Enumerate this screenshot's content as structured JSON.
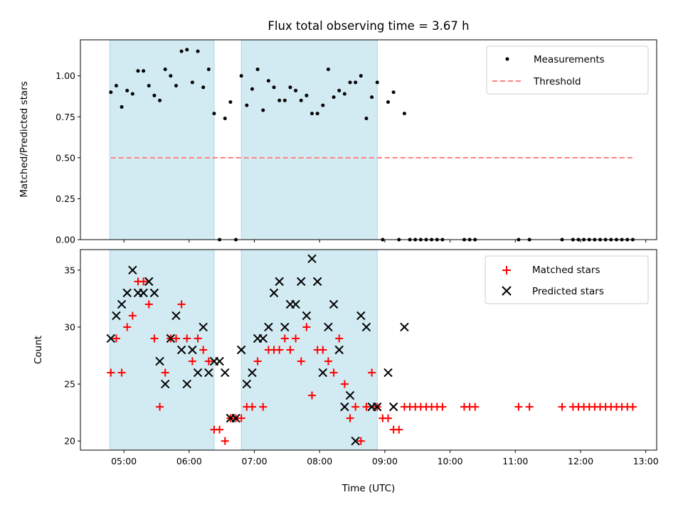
{
  "chart_data": [
    {
      "type": "scatter",
      "title": "Flux total observing time = 3.67 h",
      "xlabel": "",
      "ylabel": "Matched/Predicted stars",
      "x_range": [
        "04:20",
        "13:10"
      ],
      "ylim": [
        0.0,
        1.22
      ],
      "yticks": [
        "0.00",
        "0.25",
        "0.50",
        "0.75",
        "1.00"
      ],
      "yticks_values": [
        0.0,
        0.25,
        0.5,
        0.75,
        1.0
      ],
      "grid": false,
      "legend_position": "top-right",
      "shaded_intervals": [
        [
          "04:47",
          "06:23"
        ],
        [
          "06:48",
          "08:53"
        ]
      ],
      "shade_color": "#add8e6",
      "series": [
        {
          "name": "Measurements",
          "marker": "dot",
          "color": "#000000",
          "x": [
            "04:48",
            "04:53",
            "04:58",
            "05:03",
            "05:08",
            "05:13",
            "05:18",
            "05:23",
            "05:28",
            "05:33",
            "05:38",
            "05:43",
            "05:48",
            "05:53",
            "05:58",
            "06:03",
            "06:08",
            "06:13",
            "06:18",
            "06:23",
            "06:28",
            "06:33",
            "06:38",
            "06:43",
            "06:48",
            "06:53",
            "06:58",
            "07:03",
            "07:08",
            "07:13",
            "07:18",
            "07:23",
            "07:28",
            "07:33",
            "07:38",
            "07:43",
            "07:48",
            "07:53",
            "07:58",
            "08:03",
            "08:08",
            "08:13",
            "08:18",
            "08:23",
            "08:28",
            "08:33",
            "08:38",
            "08:43",
            "08:48",
            "08:53",
            "08:58",
            "09:03",
            "09:08",
            "09:13",
            "09:18",
            "09:23",
            "09:28",
            "09:33",
            "09:38",
            "09:43",
            "09:48",
            "09:53",
            "10:13",
            "10:18",
            "10:23",
            "11:03",
            "11:13",
            "11:43",
            "11:53",
            "11:58",
            "12:03",
            "12:08",
            "12:13",
            "12:18",
            "12:23",
            "12:28",
            "12:33",
            "12:38",
            "12:43",
            "12:48"
          ],
          "y": [
            0.9,
            0.94,
            0.81,
            0.91,
            0.89,
            1.03,
            1.03,
            0.94,
            0.88,
            0.85,
            1.04,
            1.0,
            0.94,
            1.15,
            1.16,
            0.96,
            1.15,
            0.93,
            1.04,
            0.77,
            0.0,
            0.74,
            0.84,
            0.0,
            1.0,
            0.82,
            0.92,
            1.04,
            0.79,
            0.97,
            0.93,
            0.85,
            0.85,
            0.93,
            0.91,
            0.85,
            0.88,
            0.77,
            0.77,
            0.82,
            1.04,
            0.87,
            0.91,
            0.89,
            0.96,
            0.96,
            1.0,
            0.74,
            0.87,
            0.96,
            0.0,
            0.84,
            0.9,
            0.0,
            0.77,
            0.0,
            0.0,
            0.0,
            0.0,
            0.0,
            0.0,
            0.0,
            0.0,
            0.0,
            0.0,
            0.0,
            0.0,
            0.0,
            0.0,
            0.0,
            0.0,
            0.0,
            0.0,
            0.0,
            0.0,
            0.0,
            0.0,
            0.0,
            0.0,
            0.0
          ]
        },
        {
          "name": "Threshold",
          "style": "dashed",
          "color": "#ff7f7f",
          "x": [
            "04:48",
            "12:48"
          ],
          "y": [
            0.5,
            0.5
          ]
        }
      ]
    },
    {
      "type": "scatter",
      "title": "",
      "xlabel": "Time (UTC)",
      "ylabel": "Count",
      "x_range": [
        "04:20",
        "13:10"
      ],
      "xticks": [
        "05:00",
        "06:00",
        "07:00",
        "08:00",
        "09:00",
        "10:00",
        "11:00",
        "12:00",
        "13:00"
      ],
      "ylim": [
        19.2,
        36.8
      ],
      "yticks": [
        "20",
        "25",
        "30",
        "35"
      ],
      "yticks_values": [
        20,
        25,
        30,
        35
      ],
      "grid": false,
      "legend_position": "top-right",
      "shaded_intervals": [
        [
          "04:47",
          "06:23"
        ],
        [
          "06:48",
          "08:53"
        ]
      ],
      "shade_color": "#add8e6",
      "series": [
        {
          "name": "Matched stars",
          "marker": "plus",
          "color": "#ff0000",
          "x": [
            "04:48",
            "04:53",
            "04:58",
            "05:03",
            "05:08",
            "05:13",
            "05:18",
            "05:23",
            "05:28",
            "05:33",
            "05:38",
            "05:43",
            "05:48",
            "05:53",
            "05:58",
            "06:03",
            "06:08",
            "06:13",
            "06:18",
            "06:23",
            "06:28",
            "06:33",
            "06:38",
            "06:43",
            "06:48",
            "06:53",
            "06:58",
            "07:03",
            "07:08",
            "07:13",
            "07:18",
            "07:23",
            "07:28",
            "07:33",
            "07:38",
            "07:43",
            "07:48",
            "07:53",
            "07:58",
            "08:03",
            "08:08",
            "08:13",
            "08:18",
            "08:23",
            "08:28",
            "08:33",
            "08:38",
            "08:43",
            "08:48",
            "08:53",
            "08:58",
            "09:03",
            "09:08",
            "09:13",
            "09:18",
            "09:23",
            "09:28",
            "09:33",
            "09:38",
            "09:43",
            "09:48",
            "09:53",
            "10:13",
            "10:18",
            "10:23",
            "11:03",
            "11:13",
            "11:43",
            "11:53",
            "11:58",
            "12:03",
            "12:08",
            "12:13",
            "12:18",
            "12:23",
            "12:28",
            "12:33",
            "12:38",
            "12:43",
            "12:48"
          ],
          "y": [
            26,
            29,
            26,
            30,
            31,
            34,
            34,
            32,
            29,
            23,
            26,
            29,
            29,
            32,
            29,
            27,
            29,
            28,
            27,
            21,
            21,
            20,
            22,
            22,
            22,
            23,
            23,
            27,
            23,
            28,
            28,
            28,
            29,
            28,
            29,
            27,
            30,
            24,
            28,
            28,
            27,
            26,
            29,
            25,
            22,
            23,
            20,
            23,
            26,
            23,
            22,
            22,
            21,
            21,
            23,
            23,
            23,
            23,
            23,
            23,
            23,
            23,
            23,
            23,
            23,
            23,
            23,
            23,
            23,
            23,
            23,
            23,
            23,
            23,
            23,
            23,
            23,
            23,
            23,
            23
          ]
        },
        {
          "name": "Predicted stars",
          "marker": "x",
          "color": "#000000",
          "x": [
            "04:48",
            "04:53",
            "04:58",
            "05:03",
            "05:08",
            "05:13",
            "05:18",
            "05:23",
            "05:28",
            "05:33",
            "05:38",
            "05:43",
            "05:48",
            "05:53",
            "05:58",
            "06:03",
            "06:08",
            "06:13",
            "06:18",
            "06:23",
            "06:28",
            "06:33",
            "06:38",
            "06:43",
            "06:48",
            "06:53",
            "06:58",
            "07:03",
            "07:08",
            "07:13",
            "07:18",
            "07:23",
            "07:28",
            "07:33",
            "07:38",
            "07:43",
            "07:48",
            "07:53",
            "07:58",
            "08:03",
            "08:08",
            "08:13",
            "08:18",
            "08:23",
            "08:28",
            "08:33",
            "08:38",
            "08:43",
            "08:48",
            "08:53",
            "09:03",
            "09:08",
            "09:18"
          ],
          "y": [
            29,
            31,
            32,
            33,
            35,
            33,
            33,
            34,
            33,
            27,
            25,
            29,
            31,
            28,
            25,
            28,
            26,
            30,
            26,
            27,
            27,
            26,
            22,
            22,
            28,
            25,
            26,
            29,
            29,
            30,
            33,
            34,
            30,
            32,
            32,
            34,
            31,
            36,
            34,
            26,
            30,
            32,
            28,
            23,
            24,
            20,
            31,
            30,
            23,
            23,
            26,
            23,
            30
          ]
        }
      ]
    }
  ]
}
